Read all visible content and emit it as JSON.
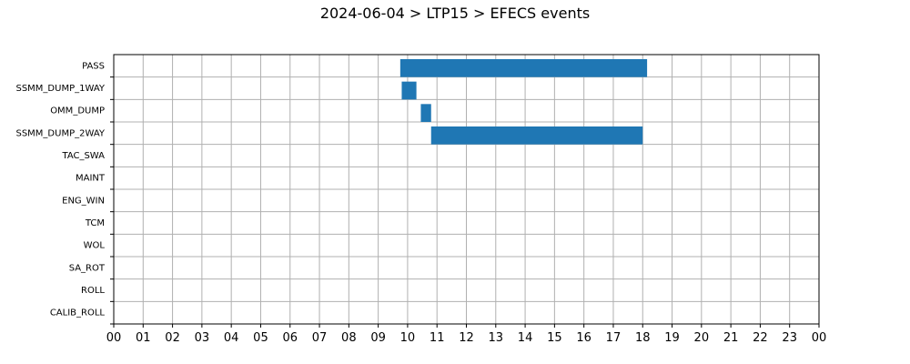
{
  "chart_data": {
    "type": "bar",
    "orientation": "horizontal-timeline",
    "title": "2024-06-04 > LTP15 > EFECS events",
    "xlabel": "",
    "ylabel": "",
    "categories": [
      "PASS",
      "SSMM_DUMP_1WAY",
      "OMM_DUMP",
      "SSMM_DUMP_2WAY",
      "TAC_SWA",
      "MAINT",
      "ENG_WIN",
      "TCM",
      "WOL",
      "SA_ROT",
      "ROLL",
      "CALIB_ROLL"
    ],
    "xlim": [
      0,
      24
    ],
    "x_tick_labels": [
      "00",
      "01",
      "02",
      "03",
      "04",
      "05",
      "06",
      "07",
      "08",
      "09",
      "10",
      "11",
      "12",
      "13",
      "14",
      "15",
      "16",
      "17",
      "18",
      "19",
      "20",
      "21",
      "22",
      "23",
      "00"
    ],
    "grid": true,
    "bar_color": "#1f77b4",
    "events": [
      {
        "category": "PASS",
        "start_hour": 9.75,
        "end_hour": 18.15
      },
      {
        "category": "SSMM_DUMP_1WAY",
        "start_hour": 9.8,
        "end_hour": 10.3
      },
      {
        "category": "OMM_DUMP",
        "start_hour": 10.45,
        "end_hour": 10.8
      },
      {
        "category": "SSMM_DUMP_2WAY",
        "start_hour": 10.8,
        "end_hour": 18.0
      }
    ]
  }
}
